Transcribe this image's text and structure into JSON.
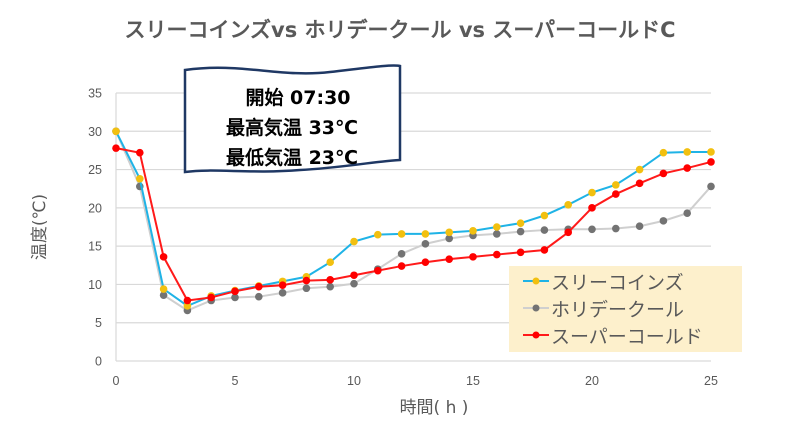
{
  "title": "スリーコインズvs ホリデークール vs スーパーコールドC",
  "callout": {
    "line1": "開始 07:30",
    "line2": "最高気温 33℃",
    "line3": "最低気温 23℃"
  },
  "colors": {
    "three_coins_line": "#1fb3e6",
    "three_coins_marker": "#f2c010",
    "holiday_cool_line": "#cfcfcf",
    "holiday_cool_marker": "#737373",
    "super_cold_line": "#ff1a1a",
    "super_cold_marker": "#ff0000",
    "legend_bg": "#fdf0cc",
    "grid": "#d9d9d9"
  },
  "legend": {
    "items": [
      {
        "label": "スリーコインズ"
      },
      {
        "label": "ホリデークール"
      },
      {
        "label": "スーパーコールド"
      }
    ]
  },
  "chart_data": {
    "type": "line",
    "title": "スリーコインズvs ホリデークール vs スーパーコールドC",
    "xlabel": "時間( h )",
    "ylabel": "温度(℃)",
    "xlim": [
      0,
      25
    ],
    "ylim": [
      0,
      35
    ],
    "x_ticks": [
      0,
      5,
      10,
      15,
      20,
      25
    ],
    "y_ticks": [
      0,
      5,
      10,
      15,
      20,
      25,
      30,
      35
    ],
    "grid": "horizontal",
    "legend_position": "lower right",
    "annotation": [
      "開始 07:30",
      "最高気温 33℃",
      "最低気温 23℃"
    ],
    "x": [
      0,
      1,
      2,
      3,
      4,
      5,
      6,
      7,
      8,
      9,
      10,
      11,
      12,
      13,
      14,
      15,
      16,
      17,
      18,
      19,
      20,
      21,
      22,
      23,
      24,
      25
    ],
    "series": [
      {
        "name": "スリーコインズ",
        "values": [
          30.0,
          23.8,
          9.4,
          7.2,
          8.5,
          9.2,
          9.8,
          10.4,
          11.0,
          12.9,
          15.6,
          16.5,
          16.6,
          16.6,
          16.8,
          17.0,
          17.5,
          18.0,
          19.0,
          20.4,
          22.0,
          23.0,
          25.0,
          27.2,
          27.3,
          27.3
        ]
      },
      {
        "name": "ホリデークール",
        "values": [
          30.0,
          22.8,
          8.6,
          6.6,
          7.9,
          8.3,
          8.4,
          8.9,
          9.5,
          9.7,
          10.1,
          12.0,
          14.0,
          15.3,
          16.0,
          16.4,
          16.6,
          16.9,
          17.1,
          17.2,
          17.2,
          17.3,
          17.6,
          18.3,
          19.3,
          22.8
        ]
      },
      {
        "name": "スーパーコールド",
        "values": [
          27.8,
          27.2,
          13.6,
          7.9,
          8.3,
          9.1,
          9.7,
          9.9,
          10.5,
          10.6,
          11.2,
          11.8,
          12.4,
          12.9,
          13.3,
          13.6,
          13.9,
          14.2,
          14.5,
          16.8,
          20.0,
          21.8,
          23.2,
          24.5,
          25.2,
          26.0
        ]
      }
    ]
  }
}
